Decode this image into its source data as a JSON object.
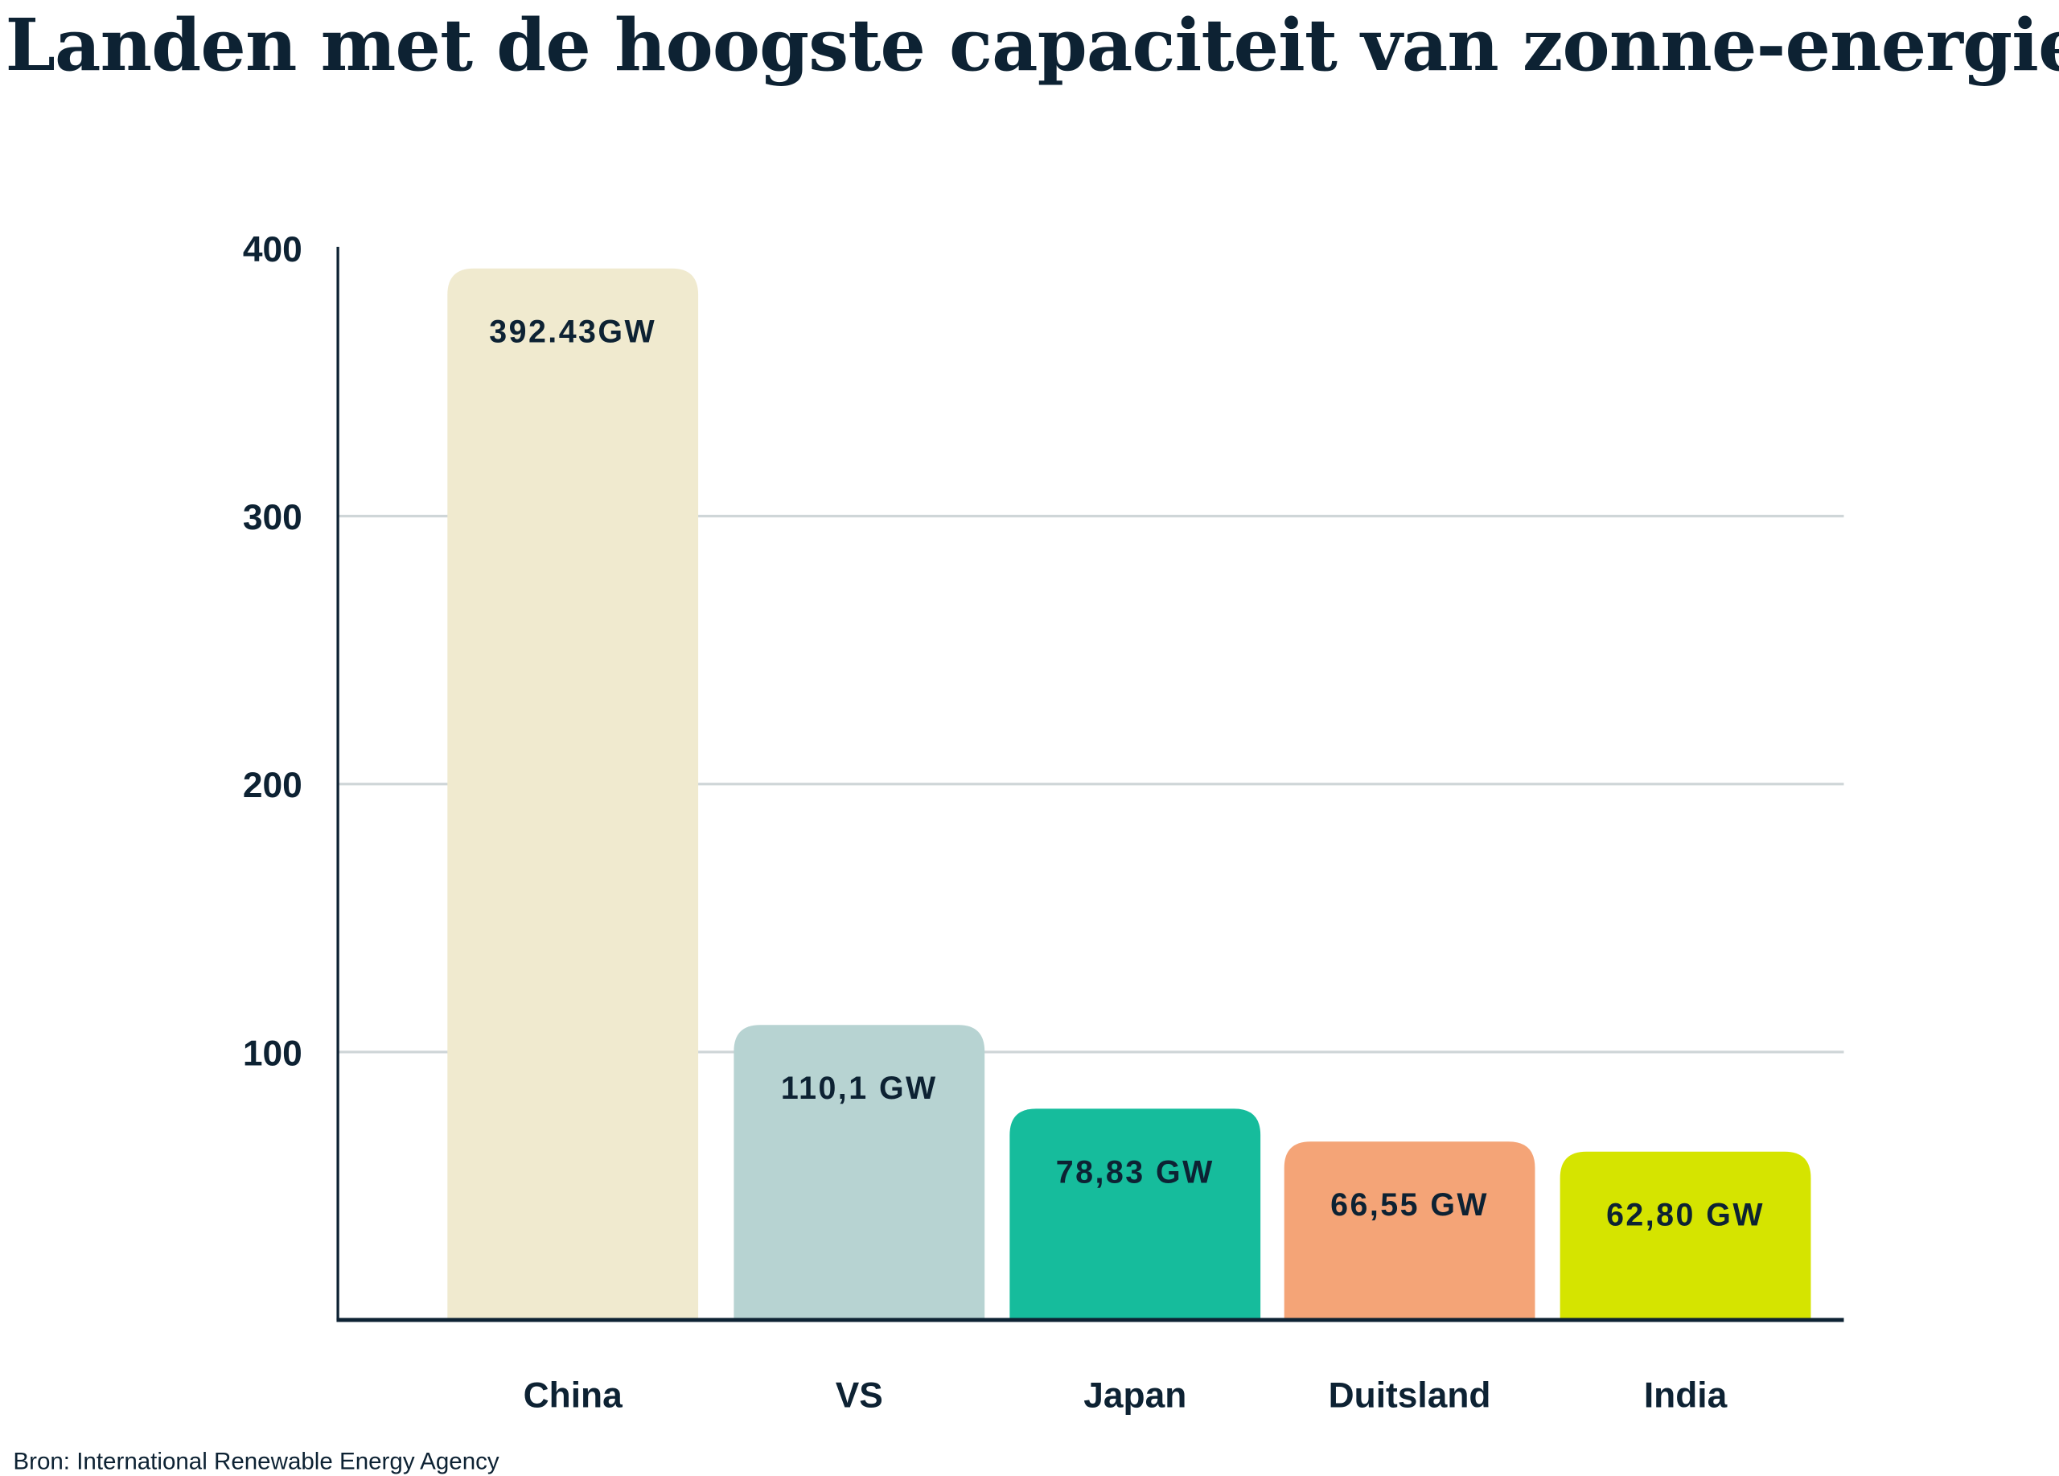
{
  "chart_data": {
    "type": "bar",
    "title": "Landen met de hoogste capaciteit van zonne-energie",
    "xlabel": "",
    "ylabel": "",
    "categories": [
      "China",
      "VS",
      "Japan",
      "Duitsland",
      "India"
    ],
    "values": [
      392.43,
      110.1,
      78.83,
      66.55,
      62.8
    ],
    "value_labels": [
      "392.43GW",
      "110,1 GW",
      "78,83 GW",
      "66,55 GW",
      "62,80 GW"
    ],
    "colors": [
      "#f0eacf",
      "#b7d3d2",
      "#16bc9c",
      "#f4a477",
      "#d5e400"
    ],
    "ylim": [
      0,
      400
    ],
    "yticks": [
      "100",
      "200",
      "300",
      "400"
    ],
    "ytick_values": [
      100,
      200,
      300,
      400
    ],
    "grid": true,
    "legend": "none"
  },
  "source": "Bron: International Renewable Energy Agency",
  "colors": {
    "text": "#0d2233",
    "grid": "#cfd6d8"
  }
}
